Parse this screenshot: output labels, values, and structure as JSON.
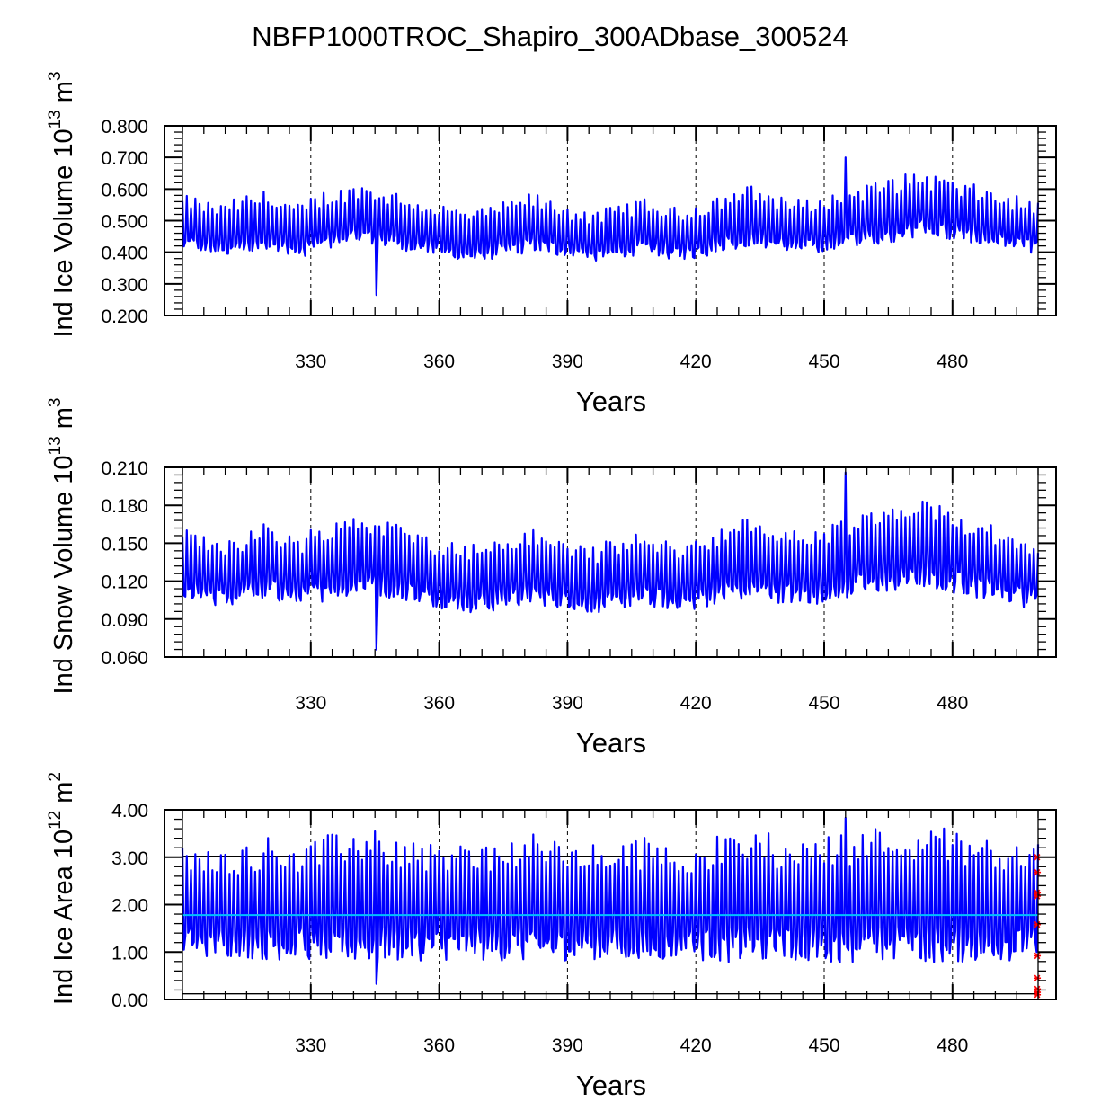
{
  "title": "NBFP1000TROC_Shapiro_300ADbase_300524",
  "chart_data": [
    {
      "type": "line",
      "xlabel": "Years",
      "ylabel": {
        "base": "Ind Ice Volume 10",
        "exp": "13",
        "unit": " m",
        "unit_exp": "3"
      },
      "xlim": [
        300,
        500
      ],
      "ylim": [
        0.2,
        0.8
      ],
      "xticks": [
        330,
        360,
        390,
        420,
        450,
        480
      ],
      "xtick_labels": [
        "330",
        "360",
        "390",
        "420",
        "450",
        "480"
      ],
      "yticks": [
        0.2,
        0.3,
        0.4,
        0.5,
        0.6,
        0.7,
        0.8
      ],
      "ytick_labels": [
        "0.200",
        "0.300",
        "0.400",
        "0.500",
        "0.600",
        "0.700",
        "0.800"
      ],
      "grid_x": "dashed vertical at major x ticks",
      "series": [
        {
          "name": "ice volume",
          "color": "#0000ff",
          "cycle_period_years": 1,
          "mean": [
            0.47,
            0.46,
            0.45,
            0.46,
            0.47,
            0.48,
            0.46,
            0.45,
            0.47,
            0.48,
            0.49,
            0.5,
            0.49,
            0.48,
            0.47,
            0.46,
            0.45,
            0.44,
            0.43,
            0.44,
            0.45,
            0.46,
            0.47,
            0.46,
            0.45,
            0.44,
            0.43,
            0.44,
            0.45,
            0.46,
            0.45,
            0.44,
            0.44,
            0.45,
            0.47,
            0.48,
            0.49,
            0.48,
            0.47,
            0.46,
            0.46,
            0.47,
            0.48,
            0.49,
            0.5,
            0.51,
            0.52,
            0.53,
            0.52,
            0.51,
            0.5,
            0.49,
            0.48,
            0.47,
            0.46
          ],
          "amplitude": [
            0.085,
            0.08,
            0.08,
            0.085,
            0.09,
            0.09,
            0.085,
            0.08,
            0.085,
            0.09,
            0.09,
            0.095,
            0.09,
            0.09,
            0.085,
            0.08,
            0.08,
            0.08,
            0.08,
            0.08,
            0.085,
            0.085,
            0.09,
            0.085,
            0.08,
            0.08,
            0.075,
            0.08,
            0.085,
            0.085,
            0.08,
            0.08,
            0.08,
            0.085,
            0.09,
            0.09,
            0.095,
            0.09,
            0.09,
            0.085,
            0.085,
            0.09,
            0.09,
            0.095,
            0.095,
            0.1,
            0.1,
            0.1,
            0.1,
            0.095,
            0.09,
            0.09,
            0.085,
            0.085,
            0.08
          ],
          "extremes": {
            "min": 0.265,
            "max": 0.7
          }
        }
      ]
    },
    {
      "type": "line",
      "xlabel": "Years",
      "ylabel": {
        "base": "Ind Snow Volume 10",
        "exp": "13",
        "unit": " m",
        "unit_exp": "3"
      },
      "xlim": [
        300,
        500
      ],
      "ylim": [
        0.06,
        0.21
      ],
      "xticks": [
        330,
        360,
        390,
        420,
        450,
        480
      ],
      "xtick_labels": [
        "330",
        "360",
        "390",
        "420",
        "450",
        "480"
      ],
      "yticks": [
        0.06,
        0.09,
        0.12,
        0.15,
        0.18,
        0.21
      ],
      "ytick_labels": [
        "0.060",
        "0.090",
        "0.120",
        "0.150",
        "0.180",
        "0.210"
      ],
      "grid_x": "dashed vertical at major x ticks",
      "series": [
        {
          "name": "snow volume",
          "color": "#0000ff",
          "cycle_period_years": 1,
          "mean": [
            0.125,
            0.122,
            0.12,
            0.122,
            0.126,
            0.128,
            0.125,
            0.122,
            0.126,
            0.13,
            0.132,
            0.134,
            0.132,
            0.13,
            0.127,
            0.123,
            0.12,
            0.118,
            0.116,
            0.117,
            0.12,
            0.122,
            0.124,
            0.122,
            0.12,
            0.117,
            0.115,
            0.117,
            0.12,
            0.122,
            0.12,
            0.118,
            0.118,
            0.121,
            0.125,
            0.128,
            0.13,
            0.128,
            0.126,
            0.124,
            0.124,
            0.127,
            0.13,
            0.133,
            0.135,
            0.137,
            0.139,
            0.141,
            0.138,
            0.135,
            0.133,
            0.13,
            0.127,
            0.124,
            0.121
          ],
          "amplitude": [
            0.028,
            0.027,
            0.027,
            0.028,
            0.029,
            0.03,
            0.028,
            0.027,
            0.029,
            0.03,
            0.031,
            0.032,
            0.031,
            0.03,
            0.029,
            0.028,
            0.028,
            0.027,
            0.027,
            0.027,
            0.028,
            0.028,
            0.029,
            0.028,
            0.027,
            0.027,
            0.026,
            0.027,
            0.028,
            0.028,
            0.027,
            0.027,
            0.027,
            0.028,
            0.03,
            0.03,
            0.031,
            0.03,
            0.03,
            0.029,
            0.029,
            0.03,
            0.031,
            0.032,
            0.032,
            0.033,
            0.034,
            0.034,
            0.033,
            0.032,
            0.031,
            0.03,
            0.029,
            0.028,
            0.028
          ],
          "extremes": {
            "min": 0.066,
            "max": 0.206
          }
        }
      ]
    },
    {
      "type": "line",
      "xlabel": "Years",
      "ylabel": {
        "base": "Ind Ice Area 10",
        "exp": "12",
        "unit": " m",
        "unit_exp": "2"
      },
      "xlim": [
        300,
        500
      ],
      "ylim": [
        0.0,
        4.0
      ],
      "xticks": [
        330,
        360,
        390,
        420,
        450,
        480
      ],
      "xtick_labels": [
        "330",
        "360",
        "390",
        "420",
        "450",
        "480"
      ],
      "yticks": [
        0.0,
        1.0,
        2.0,
        3.0,
        4.0
      ],
      "ytick_labels": [
        "0.00",
        "1.00",
        "2.00",
        "3.00",
        "4.00"
      ],
      "grid_x": "dashed vertical at major x ticks",
      "reference_lines": [
        {
          "name": "mean",
          "value": 1.78,
          "color": "#00bfff"
        },
        {
          "name": "upper",
          "value": 3.02,
          "color": "#000000"
        },
        {
          "name": "lower",
          "value": 0.12,
          "color": "#000000"
        }
      ],
      "markers": {
        "x": 499.8,
        "values": [
          3.0,
          2.68,
          2.25,
          2.18,
          1.58,
          0.92,
          0.45,
          0.22,
          0.15,
          0.1
        ],
        "color": "#ff0000",
        "symbol": "asterisk"
      },
      "series": [
        {
          "name": "ice area",
          "color": "#0000ff",
          "cycle_period_years": 1,
          "mean": [
            1.78,
            1.76,
            1.76,
            1.78,
            1.8,
            1.82,
            1.8,
            1.78,
            1.8,
            1.82,
            1.84,
            1.86,
            1.84,
            1.82,
            1.8,
            1.78,
            1.77,
            1.76,
            1.76,
            1.77,
            1.78,
            1.79,
            1.8,
            1.79,
            1.78,
            1.77,
            1.76,
            1.77,
            1.78,
            1.79,
            1.78,
            1.77,
            1.77,
            1.78,
            1.8,
            1.82,
            1.84,
            1.82,
            1.8,
            1.79,
            1.79,
            1.8,
            1.82,
            1.84,
            1.86,
            1.87,
            1.88,
            1.88,
            1.86,
            1.84,
            1.82,
            1.8,
            1.79,
            1.78,
            1.77
          ],
          "amplitude": [
            1.15,
            1.12,
            1.12,
            1.15,
            1.22,
            1.28,
            1.25,
            1.2,
            1.25,
            1.3,
            1.36,
            1.4,
            1.36,
            1.32,
            1.28,
            1.24,
            1.22,
            1.2,
            1.2,
            1.22,
            1.25,
            1.28,
            1.32,
            1.28,
            1.24,
            1.2,
            1.18,
            1.2,
            1.24,
            1.28,
            1.24,
            1.2,
            1.2,
            1.24,
            1.3,
            1.34,
            1.38,
            1.34,
            1.3,
            1.28,
            1.28,
            1.3,
            1.34,
            1.38,
            1.4,
            1.42,
            1.44,
            1.42,
            1.4,
            1.38,
            1.34,
            1.3,
            1.28,
            1.25,
            1.22
          ],
          "extremes": {
            "min": 0.33,
            "max": 3.83
          }
        }
      ]
    }
  ]
}
